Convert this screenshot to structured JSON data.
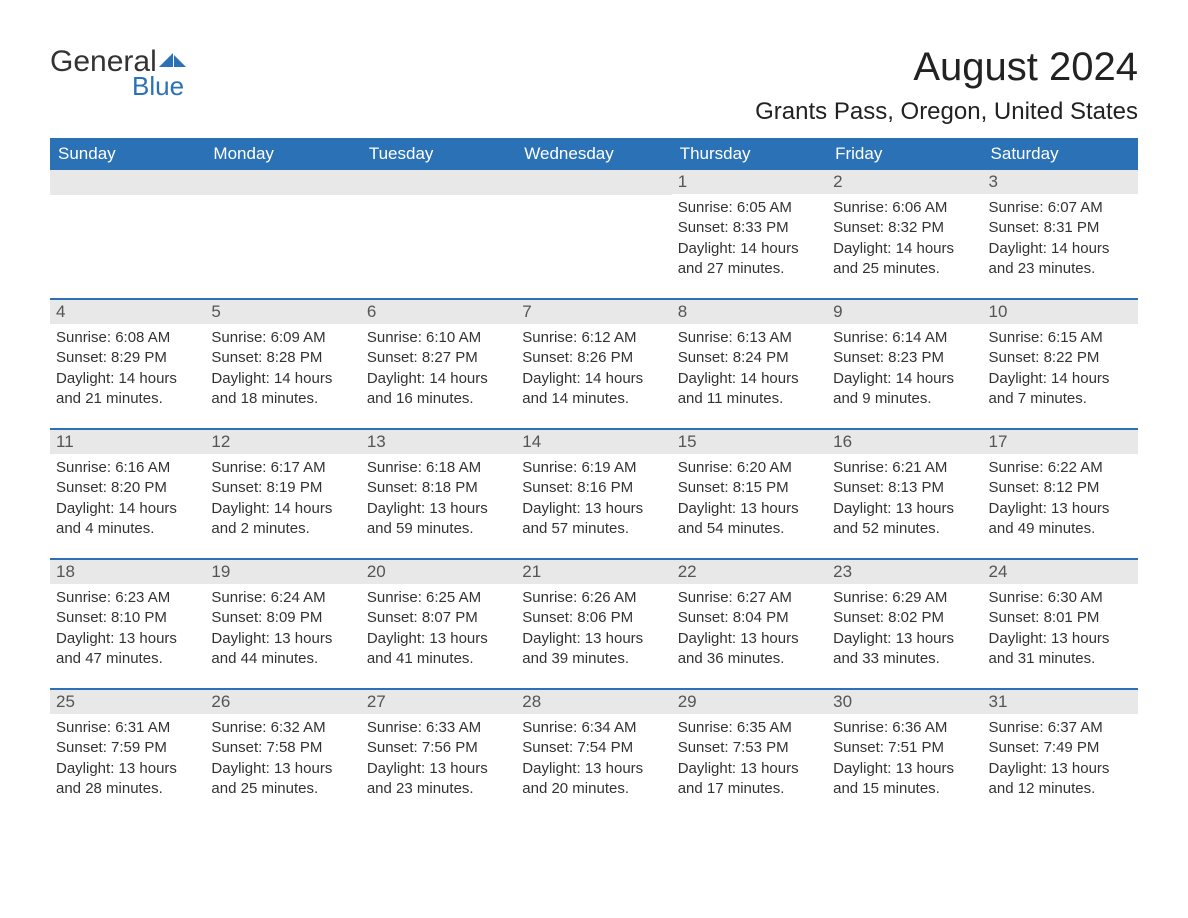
{
  "logo": {
    "general": "General",
    "blue": "Blue"
  },
  "title": "August 2024",
  "location": "Grants Pass, Oregon, United States",
  "colors": {
    "header_bg": "#2a72b5",
    "header_text": "#ffffff",
    "daynum_bg": "#e8e8e8",
    "daynum_text": "#555555",
    "content_text": "#333333",
    "logo_blue": "#2a72b5",
    "background": "#ffffff"
  },
  "weekdays": [
    "Sunday",
    "Monday",
    "Tuesday",
    "Wednesday",
    "Thursday",
    "Friday",
    "Saturday"
  ],
  "weeks": [
    [
      {
        "day": "",
        "sunrise": "",
        "sunset": "",
        "daylight": ""
      },
      {
        "day": "",
        "sunrise": "",
        "sunset": "",
        "daylight": ""
      },
      {
        "day": "",
        "sunrise": "",
        "sunset": "",
        "daylight": ""
      },
      {
        "day": "",
        "sunrise": "",
        "sunset": "",
        "daylight": ""
      },
      {
        "day": "1",
        "sunrise": "Sunrise: 6:05 AM",
        "sunset": "Sunset: 8:33 PM",
        "daylight": "Daylight: 14 hours and 27 minutes."
      },
      {
        "day": "2",
        "sunrise": "Sunrise: 6:06 AM",
        "sunset": "Sunset: 8:32 PM",
        "daylight": "Daylight: 14 hours and 25 minutes."
      },
      {
        "day": "3",
        "sunrise": "Sunrise: 6:07 AM",
        "sunset": "Sunset: 8:31 PM",
        "daylight": "Daylight: 14 hours and 23 minutes."
      }
    ],
    [
      {
        "day": "4",
        "sunrise": "Sunrise: 6:08 AM",
        "sunset": "Sunset: 8:29 PM",
        "daylight": "Daylight: 14 hours and 21 minutes."
      },
      {
        "day": "5",
        "sunrise": "Sunrise: 6:09 AM",
        "sunset": "Sunset: 8:28 PM",
        "daylight": "Daylight: 14 hours and 18 minutes."
      },
      {
        "day": "6",
        "sunrise": "Sunrise: 6:10 AM",
        "sunset": "Sunset: 8:27 PM",
        "daylight": "Daylight: 14 hours and 16 minutes."
      },
      {
        "day": "7",
        "sunrise": "Sunrise: 6:12 AM",
        "sunset": "Sunset: 8:26 PM",
        "daylight": "Daylight: 14 hours and 14 minutes."
      },
      {
        "day": "8",
        "sunrise": "Sunrise: 6:13 AM",
        "sunset": "Sunset: 8:24 PM",
        "daylight": "Daylight: 14 hours and 11 minutes."
      },
      {
        "day": "9",
        "sunrise": "Sunrise: 6:14 AM",
        "sunset": "Sunset: 8:23 PM",
        "daylight": "Daylight: 14 hours and 9 minutes."
      },
      {
        "day": "10",
        "sunrise": "Sunrise: 6:15 AM",
        "sunset": "Sunset: 8:22 PM",
        "daylight": "Daylight: 14 hours and 7 minutes."
      }
    ],
    [
      {
        "day": "11",
        "sunrise": "Sunrise: 6:16 AM",
        "sunset": "Sunset: 8:20 PM",
        "daylight": "Daylight: 14 hours and 4 minutes."
      },
      {
        "day": "12",
        "sunrise": "Sunrise: 6:17 AM",
        "sunset": "Sunset: 8:19 PM",
        "daylight": "Daylight: 14 hours and 2 minutes."
      },
      {
        "day": "13",
        "sunrise": "Sunrise: 6:18 AM",
        "sunset": "Sunset: 8:18 PM",
        "daylight": "Daylight: 13 hours and 59 minutes."
      },
      {
        "day": "14",
        "sunrise": "Sunrise: 6:19 AM",
        "sunset": "Sunset: 8:16 PM",
        "daylight": "Daylight: 13 hours and 57 minutes."
      },
      {
        "day": "15",
        "sunrise": "Sunrise: 6:20 AM",
        "sunset": "Sunset: 8:15 PM",
        "daylight": "Daylight: 13 hours and 54 minutes."
      },
      {
        "day": "16",
        "sunrise": "Sunrise: 6:21 AM",
        "sunset": "Sunset: 8:13 PM",
        "daylight": "Daylight: 13 hours and 52 minutes."
      },
      {
        "day": "17",
        "sunrise": "Sunrise: 6:22 AM",
        "sunset": "Sunset: 8:12 PM",
        "daylight": "Daylight: 13 hours and 49 minutes."
      }
    ],
    [
      {
        "day": "18",
        "sunrise": "Sunrise: 6:23 AM",
        "sunset": "Sunset: 8:10 PM",
        "daylight": "Daylight: 13 hours and 47 minutes."
      },
      {
        "day": "19",
        "sunrise": "Sunrise: 6:24 AM",
        "sunset": "Sunset: 8:09 PM",
        "daylight": "Daylight: 13 hours and 44 minutes."
      },
      {
        "day": "20",
        "sunrise": "Sunrise: 6:25 AM",
        "sunset": "Sunset: 8:07 PM",
        "daylight": "Daylight: 13 hours and 41 minutes."
      },
      {
        "day": "21",
        "sunrise": "Sunrise: 6:26 AM",
        "sunset": "Sunset: 8:06 PM",
        "daylight": "Daylight: 13 hours and 39 minutes."
      },
      {
        "day": "22",
        "sunrise": "Sunrise: 6:27 AM",
        "sunset": "Sunset: 8:04 PM",
        "daylight": "Daylight: 13 hours and 36 minutes."
      },
      {
        "day": "23",
        "sunrise": "Sunrise: 6:29 AM",
        "sunset": "Sunset: 8:02 PM",
        "daylight": "Daylight: 13 hours and 33 minutes."
      },
      {
        "day": "24",
        "sunrise": "Sunrise: 6:30 AM",
        "sunset": "Sunset: 8:01 PM",
        "daylight": "Daylight: 13 hours and 31 minutes."
      }
    ],
    [
      {
        "day": "25",
        "sunrise": "Sunrise: 6:31 AM",
        "sunset": "Sunset: 7:59 PM",
        "daylight": "Daylight: 13 hours and 28 minutes."
      },
      {
        "day": "26",
        "sunrise": "Sunrise: 6:32 AM",
        "sunset": "Sunset: 7:58 PM",
        "daylight": "Daylight: 13 hours and 25 minutes."
      },
      {
        "day": "27",
        "sunrise": "Sunrise: 6:33 AM",
        "sunset": "Sunset: 7:56 PM",
        "daylight": "Daylight: 13 hours and 23 minutes."
      },
      {
        "day": "28",
        "sunrise": "Sunrise: 6:34 AM",
        "sunset": "Sunset: 7:54 PM",
        "daylight": "Daylight: 13 hours and 20 minutes."
      },
      {
        "day": "29",
        "sunrise": "Sunrise: 6:35 AM",
        "sunset": "Sunset: 7:53 PM",
        "daylight": "Daylight: 13 hours and 17 minutes."
      },
      {
        "day": "30",
        "sunrise": "Sunrise: 6:36 AM",
        "sunset": "Sunset: 7:51 PM",
        "daylight": "Daylight: 13 hours and 15 minutes."
      },
      {
        "day": "31",
        "sunrise": "Sunrise: 6:37 AM",
        "sunset": "Sunset: 7:49 PM",
        "daylight": "Daylight: 13 hours and 12 minutes."
      }
    ]
  ]
}
